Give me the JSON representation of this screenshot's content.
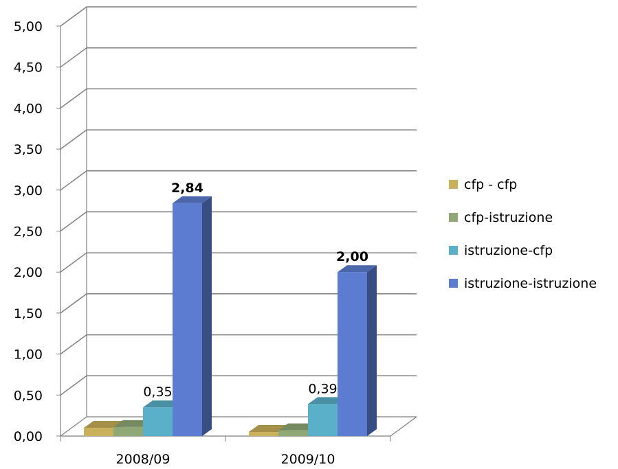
{
  "chart_data": {
    "type": "bar",
    "categories": [
      "2008/09",
      "2009/10"
    ],
    "series": [
      {
        "name": "cfp - cfp",
        "values": [
          0.1,
          0.05
        ],
        "color": "#C9B05A"
      },
      {
        "name": "cfp-istruzione",
        "values": [
          0.11,
          0.07
        ],
        "color": "#8FA876"
      },
      {
        "name": "istruzione-cfp",
        "values": [
          0.35,
          0.39
        ],
        "color": "#5AAFC9"
      },
      {
        "name": "istruzione-istruzione",
        "values": [
          2.84,
          2.0
        ],
        "color": "#5B7CD0"
      }
    ],
    "data_labels": [
      {
        "series": 2,
        "category": 0,
        "text": "0,35",
        "bold": false
      },
      {
        "series": 3,
        "category": 0,
        "text": "2,84",
        "bold": true
      },
      {
        "series": 2,
        "category": 1,
        "text": "0,39",
        "bold": false
      },
      {
        "series": 3,
        "category": 1,
        "text": "2,00",
        "bold": true
      }
    ],
    "ylim": [
      0,
      5
    ],
    "yticks": [
      0,
      0.5,
      1,
      1.5,
      2,
      2.5,
      3,
      3.5,
      4,
      4.5,
      5
    ],
    "ytick_labels": [
      "0,00",
      "0,50",
      "1,00",
      "1,50",
      "2,00",
      "2,50",
      "3,00",
      "3,50",
      "4,00",
      "4,50",
      "5,00"
    ],
    "grid": true,
    "legend_position": "right",
    "three_d": true
  }
}
